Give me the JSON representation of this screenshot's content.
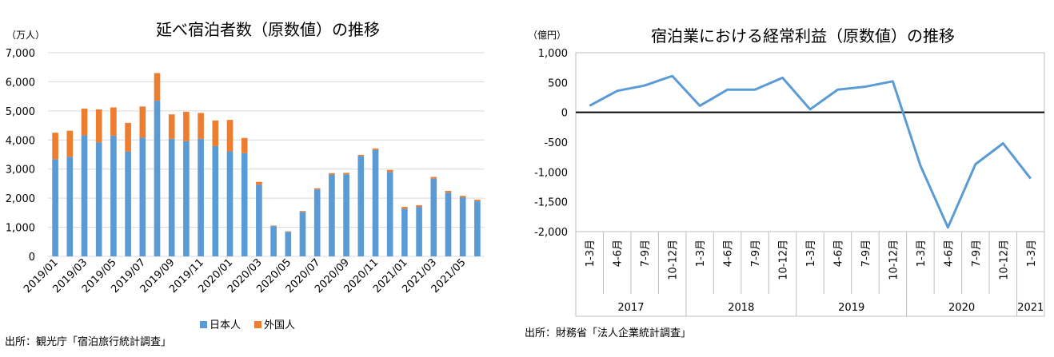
{
  "chart_data": [
    {
      "type": "bar",
      "stacked": true,
      "title": "延べ宿泊者数（原数値）の推移",
      "unit": "（万人）",
      "source": "出所：観光庁「宿泊旅行統計調査」",
      "ylim": [
        0,
        7000
      ],
      "yticks": [
        "0",
        "1,000",
        "2,000",
        "3,000",
        "4,000",
        "5,000",
        "6,000",
        "7,000"
      ],
      "ytick_values": [
        0,
        1000,
        2000,
        3000,
        4000,
        5000,
        6000,
        7000
      ],
      "grid": true,
      "legend_position": "bottom",
      "categories": [
        "2019/01",
        "2019/02",
        "2019/03",
        "2019/04",
        "2019/05",
        "2019/06",
        "2019/07",
        "2019/08",
        "2019/09",
        "2019/10",
        "2019/11",
        "2019/12",
        "2020/01",
        "2020/02",
        "2020/03",
        "2020/04",
        "2020/05",
        "2020/06",
        "2020/07",
        "2020/08",
        "2020/09",
        "2020/10",
        "2020/11",
        "2020/12",
        "2021/01",
        "2021/02",
        "2021/03",
        "2021/04",
        "2021/05",
        "2021/06"
      ],
      "xtick_labels": [
        "2019/01",
        "2019/03",
        "2019/05",
        "2019/07",
        "2019/09",
        "2019/11",
        "2020/01",
        "2020/03",
        "2020/05",
        "2020/07",
        "2020/09",
        "2020/11",
        "2021/01",
        "2021/03",
        "2021/05"
      ],
      "series": [
        {
          "name": "日本人",
          "color": "#5b9bd5",
          "values": [
            3340,
            3420,
            4160,
            3920,
            4150,
            3600,
            4080,
            5350,
            4040,
            3960,
            4040,
            3790,
            3610,
            3550,
            2460,
            1040,
            840,
            1530,
            2300,
            2810,
            2820,
            3450,
            3660,
            2900,
            1640,
            1700,
            2670,
            2190,
            2030,
            1900
          ]
        },
        {
          "name": "外国人",
          "color": "#ed7d31",
          "values": [
            910,
            900,
            920,
            1130,
            970,
            990,
            1070,
            950,
            840,
            1010,
            890,
            880,
            1080,
            520,
            100,
            20,
            20,
            30,
            40,
            50,
            50,
            40,
            50,
            70,
            60,
            60,
            60,
            60,
            50,
            50
          ]
        }
      ]
    },
    {
      "type": "line",
      "title": "宿泊業における経常利益（原数値）の推移",
      "unit": "（億円）",
      "source": "出所：財務省「法人企業統計調査」",
      "ylim": [
        -2000,
        1000
      ],
      "yticks": [
        "1,000",
        "500",
        "0",
        "-500",
        "-1,000",
        "-1,500",
        "-2,000"
      ],
      "ytick_values": [
        1000,
        500,
        0,
        -500,
        -1000,
        -1500,
        -2000
      ],
      "grid": false,
      "color": "#5b9bd5",
      "categories": [
        "1-3月",
        "4-6月",
        "7-9月",
        "10-12月",
        "1-3月",
        "4-6月",
        "7-9月",
        "10-12月",
        "1-3月",
        "4-6月",
        "7-9月",
        "10-12月",
        "1-3月",
        "4-6月",
        "7-9月",
        "10-12月",
        "1-3月"
      ],
      "groups": [
        {
          "label": "2017",
          "count": 4
        },
        {
          "label": "2018",
          "count": 4
        },
        {
          "label": "2019",
          "count": 4
        },
        {
          "label": "2020",
          "count": 4
        },
        {
          "label": "2021",
          "count": 1
        }
      ],
      "values": [
        110,
        360,
        450,
        610,
        110,
        380,
        380,
        580,
        50,
        380,
        430,
        520,
        -890,
        -1930,
        -870,
        -520,
        -1110
      ]
    }
  ]
}
